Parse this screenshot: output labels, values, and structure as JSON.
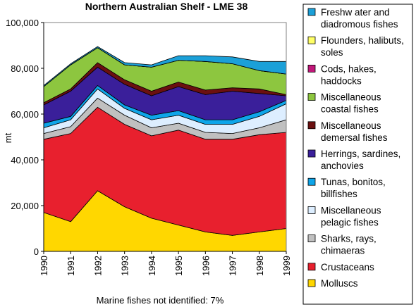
{
  "chart_data": {
    "type": "area",
    "stacked": true,
    "title": "Northern Australian Shelf - LME 38",
    "xlabel": "",
    "ylabel": "mt",
    "x": [
      "1990",
      "1991",
      "1992",
      "1993",
      "1994",
      "1995",
      "1996",
      "1997",
      "1998",
      "1999"
    ],
    "ylim": [
      0,
      100000
    ],
    "yticks": [
      "0",
      "20,000",
      "40,000",
      "60,000",
      "80,000",
      "100,000"
    ],
    "grid": false,
    "legend_position": "right",
    "series": [
      {
        "name": "Molluscs",
        "legend_text": [
          "Molluscs"
        ],
        "color": "#FFD700",
        "values": [
          17000,
          13000,
          26500,
          19500,
          14500,
          11500,
          8500,
          7000,
          8500,
          10000
        ]
      },
      {
        "name": "Crustaceans",
        "legend_text": [
          "Crustaceans"
        ],
        "color": "#E8202E",
        "values": [
          32000,
          38500,
          36500,
          36000,
          36000,
          41500,
          40500,
          42000,
          42500,
          42000
        ]
      },
      {
        "name": "Sharks, rays, chimaeras",
        "legend_text": [
          "Sharks, rays,",
          "chimaeras"
        ],
        "color": "#C0C0C0",
        "values": [
          2500,
          3000,
          4000,
          4000,
          3500,
          3000,
          3000,
          2500,
          3000,
          5500
        ]
      },
      {
        "name": "Miscellaneous pelagic fishes",
        "legend_text": [
          "Miscellaneous",
          "pelagic fishes"
        ],
        "color": "#DDEEFF",
        "values": [
          2500,
          3000,
          4000,
          3000,
          3500,
          3500,
          3500,
          4000,
          5000,
          7000
        ]
      },
      {
        "name": "Tunas, bonitos, billfishes",
        "legend_text": [
          "Tunas, bonitos,",
          "billfishes"
        ],
        "color": "#0EA5E9",
        "values": [
          2000,
          1500,
          1500,
          1500,
          2000,
          2000,
          2000,
          2000,
          2000,
          1500
        ]
      },
      {
        "name": "Herrings, sardines, anchovies",
        "legend_text": [
          "Herrings, sardines,",
          "anchovies"
        ],
        "color": "#3A1F9A",
        "values": [
          8000,
          11000,
          8000,
          9000,
          8500,
          10500,
          11000,
          12500,
          8000,
          2000
        ]
      },
      {
        "name": "Miscellaneous demersal fishes",
        "legend_text": [
          "Miscellaneous",
          "demersal fishes"
        ],
        "color": "#6B1010",
        "values": [
          1000,
          1000,
          2000,
          2000,
          2000,
          2000,
          2000,
          1500,
          2000,
          500
        ]
      },
      {
        "name": "Miscellaneous coastal fishes",
        "legend_text": [
          "Miscellaneous",
          "coastal fishes"
        ],
        "color": "#8DC63F",
        "values": [
          7000,
          10500,
          6500,
          6500,
          10500,
          9500,
          12500,
          10500,
          8000,
          9000
        ]
      },
      {
        "name": "Cods, hakes, haddocks",
        "legend_text": [
          "Cods, hakes,",
          "haddocks"
        ],
        "color": "#C2187A",
        "values": [
          0,
          0,
          0,
          0,
          0,
          0,
          0,
          0,
          0,
          0
        ]
      },
      {
        "name": "Flounders, halibuts, soles",
        "legend_text": [
          "Flounders, halibuts,",
          "soles"
        ],
        "color": "#FFFF66",
        "values": [
          0,
          0,
          0,
          0,
          0,
          0,
          0,
          0,
          0,
          0
        ]
      },
      {
        "name": "Freshwater and diadromous fishes",
        "legend_text": [
          "Freshw ater and",
          "diadromous fishes"
        ],
        "color": "#1BA0D8",
        "values": [
          500,
          500,
          500,
          1000,
          1000,
          2000,
          2500,
          3000,
          4000,
          5500
        ]
      }
    ],
    "annotations": [
      "Marine fishes not identified: 7%"
    ]
  }
}
